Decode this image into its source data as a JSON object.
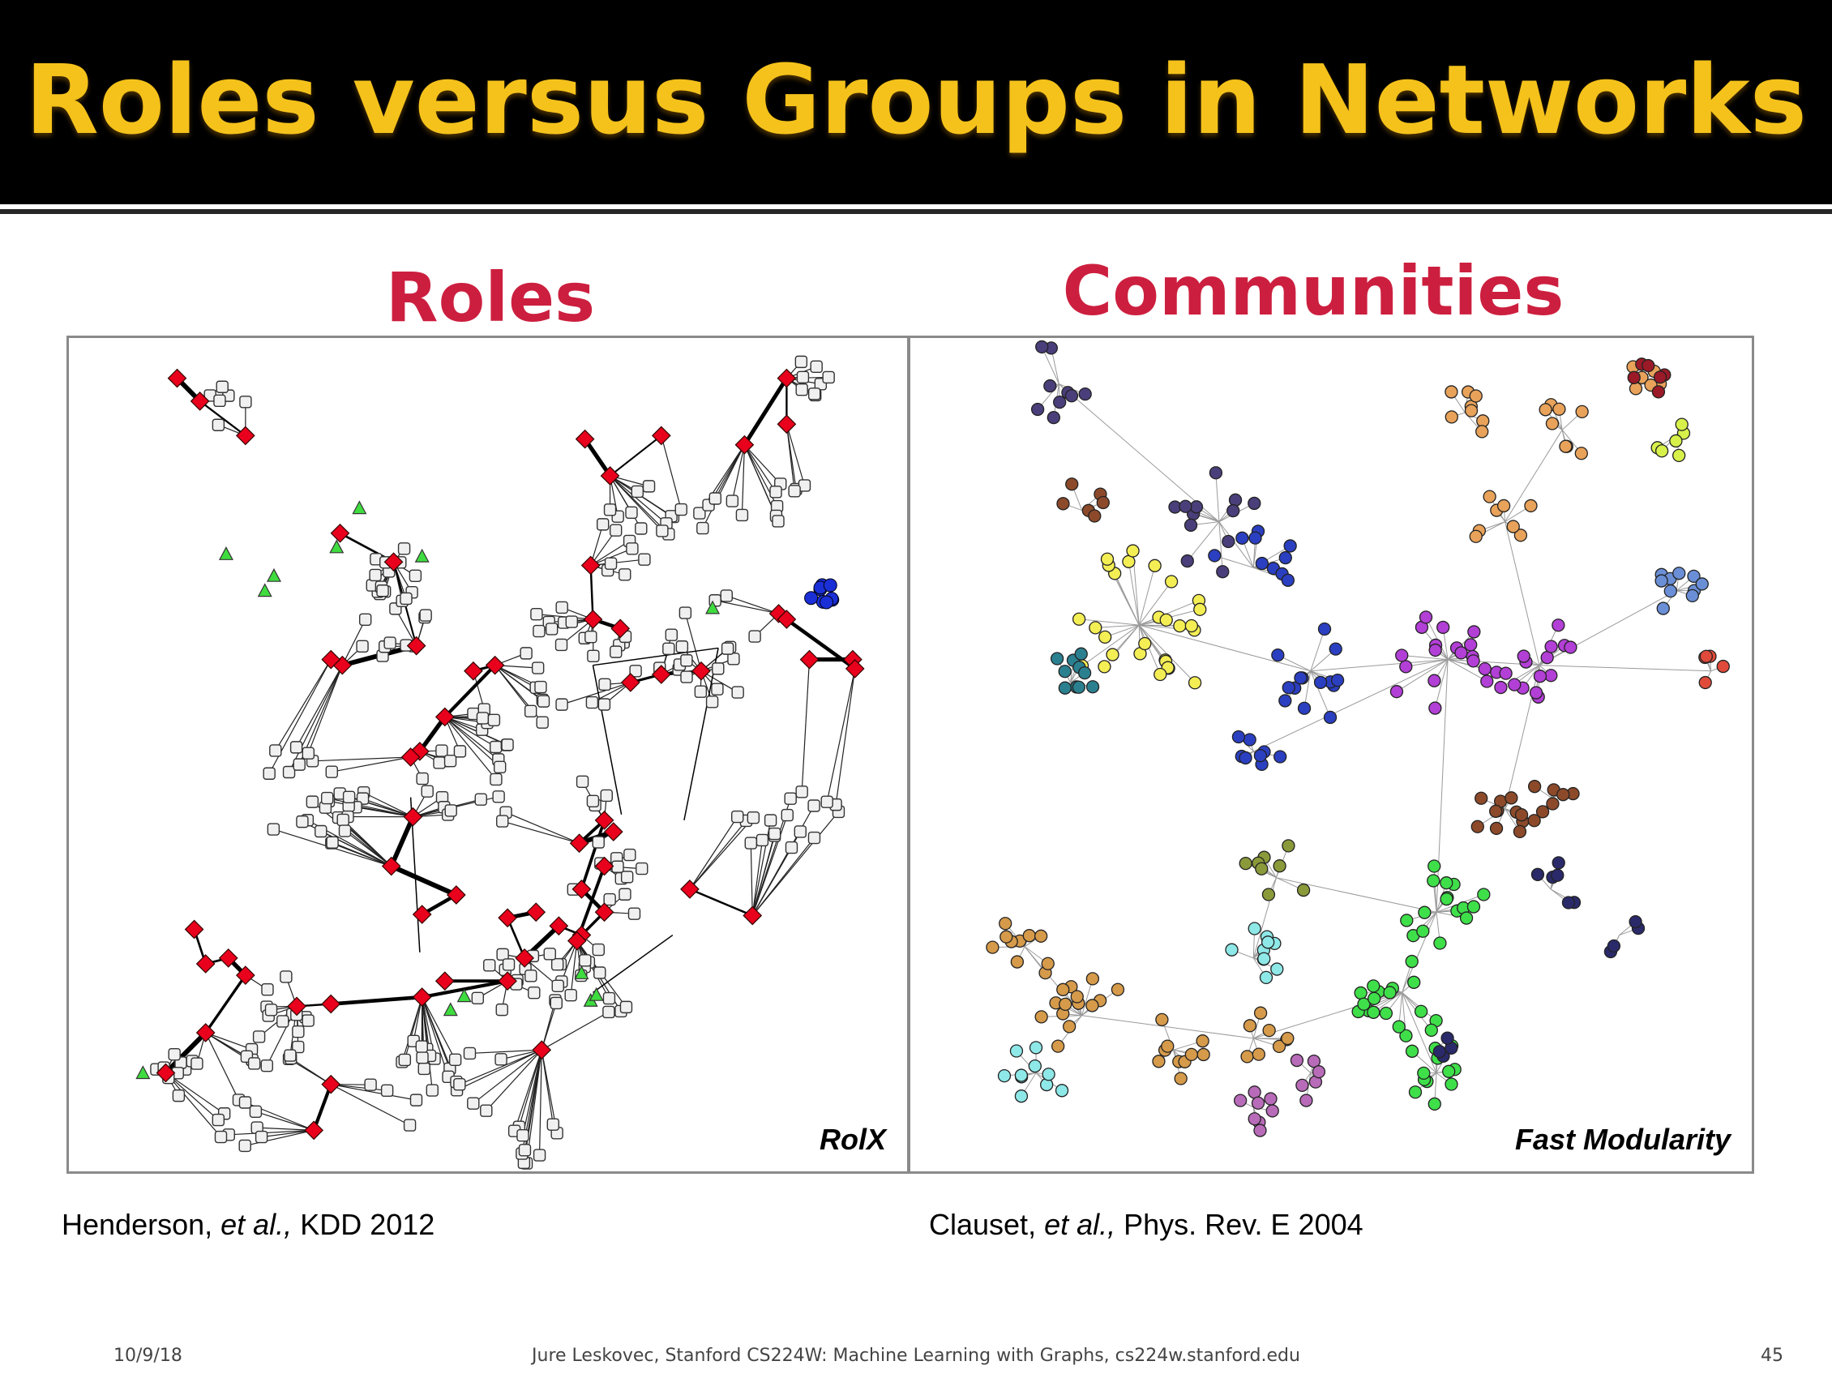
{
  "slide": {
    "title": "Roles versus Groups in Networks",
    "roles_label": "Roles",
    "communities_label": "Communities",
    "roles_caption": "RolX",
    "communities_caption": "Fast Modularity",
    "citation_left": {
      "author": "Henderson, ",
      "etal": "et al.,",
      "venue": " KDD 2012"
    },
    "citation_right": {
      "author": "Clauset, ",
      "etal": "et al.,",
      "venue": " Phys. Rev. E 2004"
    },
    "footer_date": "10/9/18",
    "footer_credit": "Jure Leskovec, Stanford CS224W: Machine Learning with Graphs, cs224w.stanford.edu",
    "footer_page": "45"
  },
  "colors": {
    "title_bg": "#000000",
    "title_text": "#f5c21b",
    "section_label": "#cc1f3f",
    "roles_node_bridge": "#e8001c",
    "roles_node_peripheral": "#f0f0f0",
    "roles_node_clique": "#1a2fd6",
    "roles_node_leaf": "#3fdc3f",
    "community_colors": [
      "#4a3f7a",
      "#2b3fc1",
      "#f4ee55",
      "#b23fd6",
      "#e8a25a",
      "#3fdf4a",
      "#8c4a2a",
      "#d59a4a",
      "#8fe8e8",
      "#2b8090",
      "#b86bb8",
      "#9a1a28",
      "#6b8fd6",
      "#d8f04a",
      "#8a9a3a",
      "#c8f0f0",
      "#e04a3a",
      "#2a2a6a"
    ]
  }
}
